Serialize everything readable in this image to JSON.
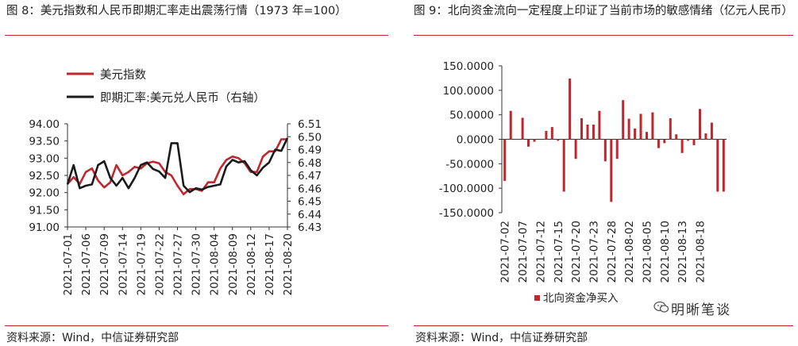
{
  "left": {
    "title": "图 8：美元指数和人民币即期汇率走出震荡行情（1973 年=100）",
    "source": "资料来源：Wind，中信证券研究部",
    "chart_data": {
      "type": "line",
      "x": [
        "2021-07-01",
        "2021-07-02",
        "2021-07-05",
        "2021-07-06",
        "2021-07-07",
        "2021-07-08",
        "2021-07-09",
        "2021-07-12",
        "2021-07-13",
        "2021-07-14",
        "2021-07-15",
        "2021-07-16",
        "2021-07-19",
        "2021-07-20",
        "2021-07-21",
        "2021-07-22",
        "2021-07-23",
        "2021-07-26",
        "2021-07-27",
        "2021-07-28",
        "2021-07-29",
        "2021-07-30",
        "2021-08-02",
        "2021-08-03",
        "2021-08-04",
        "2021-08-05",
        "2021-08-06",
        "2021-08-09",
        "2021-08-10",
        "2021-08-11",
        "2021-08-12",
        "2021-08-13",
        "2021-08-16",
        "2021-08-17",
        "2021-08-18",
        "2021-08-19",
        "2021-08-20"
      ],
      "xticks": [
        "2021-07-01",
        "2021-07-06",
        "2021-07-09",
        "2021-07-14",
        "2021-07-19",
        "2021-07-22",
        "2021-07-27",
        "2021-07-30",
        "2021-08-04",
        "2021-08-09",
        "2021-08-12",
        "2021-08-17",
        "2021-08-20"
      ],
      "series": [
        {
          "name": "美元指数",
          "axis": "left",
          "color": "#c0262d",
          "values": [
            92.25,
            92.45,
            92.25,
            92.6,
            92.7,
            92.35,
            92.15,
            92.3,
            92.8,
            92.5,
            92.6,
            92.75,
            92.7,
            92.85,
            92.9,
            92.85,
            92.6,
            92.5,
            92.2,
            91.95,
            92.1,
            92.1,
            92.05,
            92.3,
            92.3,
            92.7,
            92.95,
            93.05,
            93.0,
            92.85,
            92.6,
            92.6,
            93.05,
            93.2,
            93.2,
            93.55,
            93.55
          ]
        },
        {
          "name": "即期汇率:美元兑人民币（右轴）",
          "axis": "right",
          "color": "#1a1a1a",
          "values": [
            6.463,
            6.478,
            6.46,
            6.462,
            6.463,
            6.478,
            6.481,
            6.468,
            6.462,
            6.468,
            6.46,
            6.468,
            6.478,
            6.48,
            6.475,
            6.473,
            6.468,
            6.495,
            6.495,
            6.462,
            6.457,
            6.46,
            6.459,
            6.461,
            6.462,
            6.463,
            6.477,
            6.482,
            6.48,
            6.481,
            6.474,
            6.47,
            6.476,
            6.48,
            6.49,
            6.489,
            6.499
          ]
        }
      ],
      "yticks_left": [
        "94.00",
        "93.50",
        "93.00",
        "92.50",
        "92.00",
        "91.50",
        "91.00"
      ],
      "yticks_right": [
        "6.51",
        "6.50",
        "6.49",
        "6.48",
        "6.47",
        "6.46",
        "6.45",
        "6.44",
        "6.43"
      ],
      "ylim_left": [
        91.0,
        94.0
      ],
      "ylim_right": [
        6.43,
        6.51
      ],
      "legend_position": "top-left"
    }
  },
  "right": {
    "title": "图 9：北向资金流向一定程度上印证了当前市场的敏感情绪（亿元人民币）",
    "source": "资料来源：Wind，中信证券研究部",
    "watermark": "明晰笔谈",
    "chart_data": {
      "type": "bar",
      "series": [
        {
          "name": "北向资金净买入",
          "color": "#c0262d",
          "values": [
            -85,
            58,
            0,
            44,
            -15,
            -5,
            0,
            17,
            25,
            -3,
            -107,
            124,
            -40,
            43,
            30,
            30,
            58,
            -45,
            -128,
            -40,
            80,
            42,
            22,
            52,
            15,
            55,
            -18,
            -8,
            43,
            10,
            -28,
            -3,
            -12,
            62,
            12,
            34,
            -107,
            -107
          ]
        }
      ],
      "categories": [
        "2021-07-02",
        "2021-07-05",
        "2021-07-06",
        "2021-07-07",
        "2021-07-08",
        "2021-07-09",
        "2021-07-12",
        "2021-07-13",
        "2021-07-14",
        "2021-07-15",
        "2021-07-16",
        "2021-07-19",
        "2021-07-20",
        "2021-07-21",
        "2021-07-22",
        "2021-07-23",
        "2021-07-26",
        "2021-07-27",
        "2021-07-28",
        "2021-07-29",
        "2021-07-30",
        "2021-08-02",
        "2021-08-03",
        "2021-08-04",
        "2021-08-05",
        "2021-08-06",
        "2021-08-09",
        "2021-08-10",
        "2021-08-11",
        "2021-08-12",
        "2021-08-13",
        "2021-08-16",
        "2021-08-17",
        "2021-08-18",
        "2021-08-19",
        "2021-08-20",
        "2021-08-23",
        "2021-08-24"
      ],
      "xticks": [
        "2021-07-02",
        "2021-07-07",
        "2021-07-12",
        "2021-07-15",
        "2021-07-20",
        "2021-07-23",
        "2021-07-28",
        "2021-08-02",
        "2021-08-05",
        "2021-08-10",
        "2021-08-13",
        "2021-08-18"
      ],
      "yticks": [
        "150.0000",
        "100.0000",
        "50.0000",
        "0.0000",
        "-50.0000",
        "-100.0000",
        "-150.0000"
      ],
      "ylim": [
        -150,
        150
      ],
      "legend_position": "bottom"
    }
  }
}
